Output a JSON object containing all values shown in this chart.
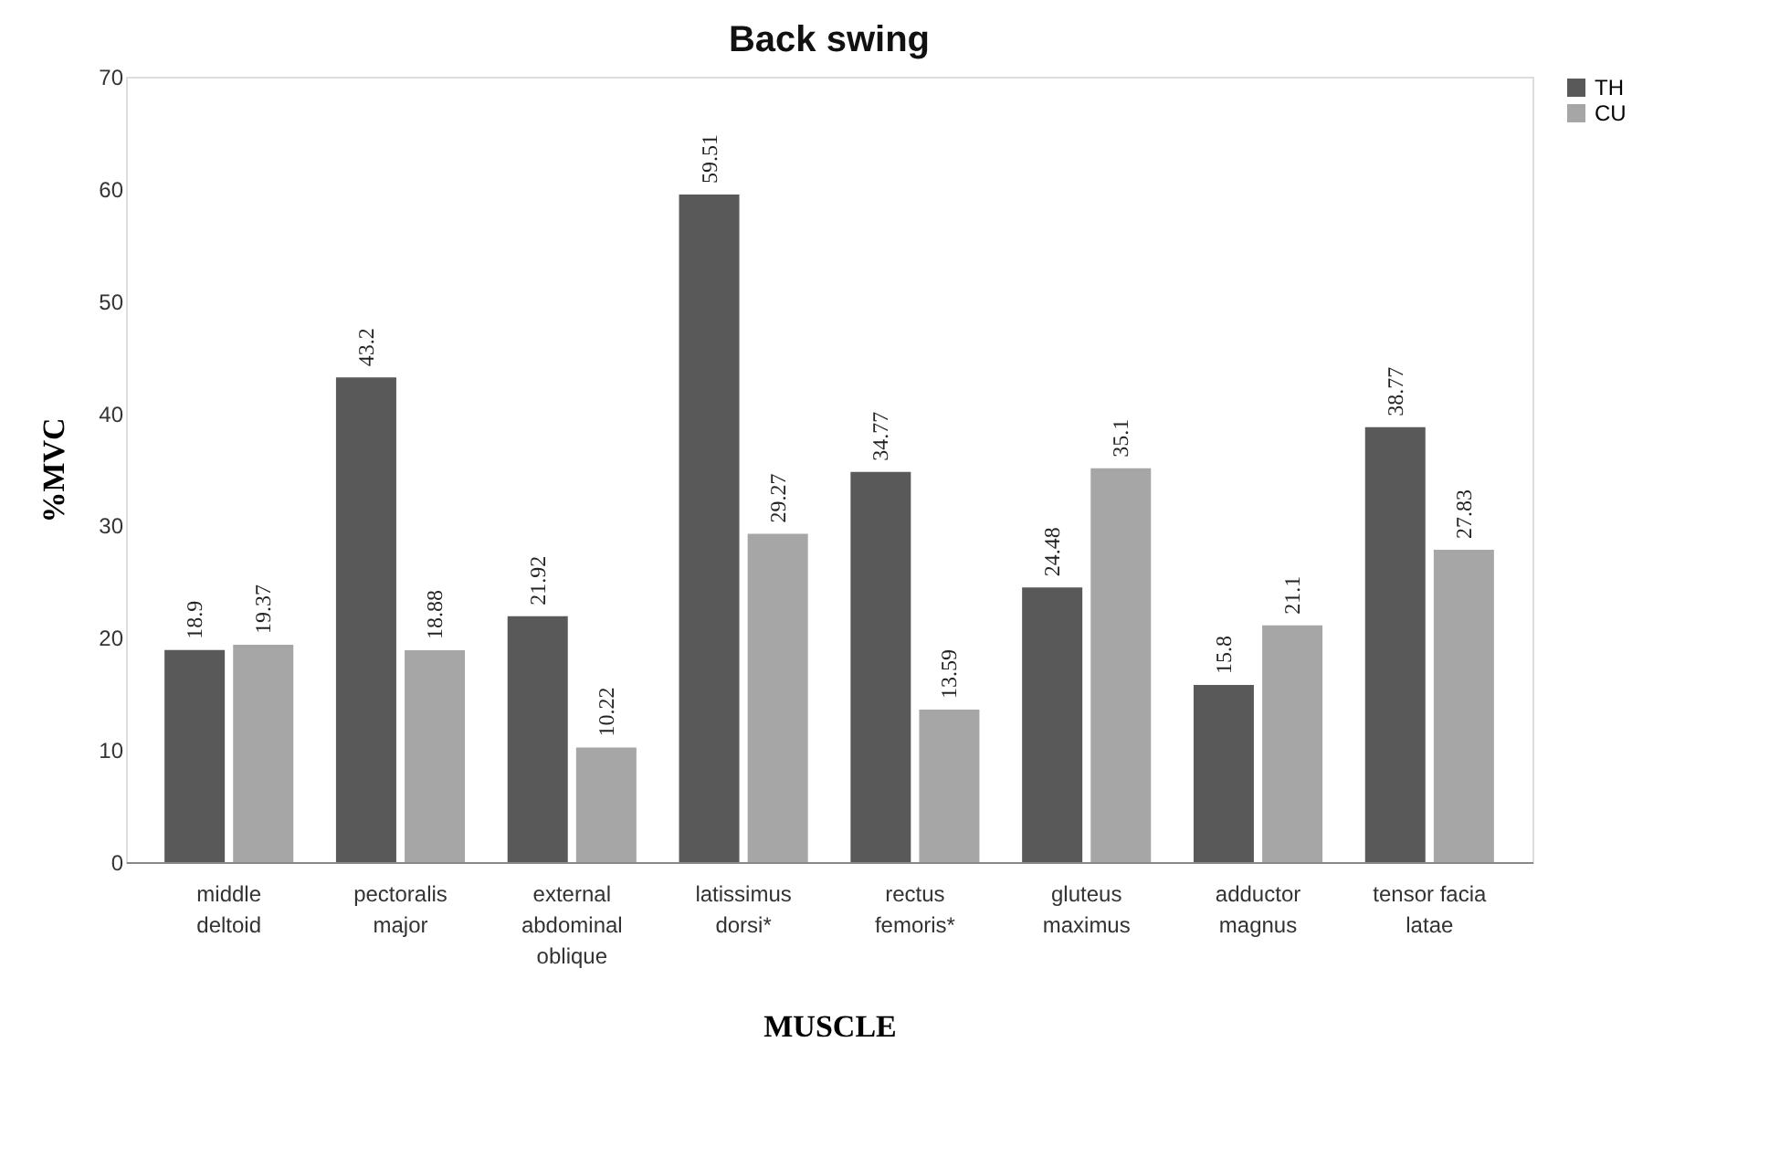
{
  "chart_data": {
    "type": "bar",
    "title": "Back swing",
    "xlabel": "MUSCLE",
    "ylabel": "%MVC",
    "categories": [
      "middle deltoid",
      "pectoralis major",
      "external abdominal oblique",
      "latissimus dorsi*",
      "rectus femoris*",
      "gluteus maximus",
      "adductor magnus",
      "tensor facia latae"
    ],
    "series": [
      {
        "name": "TH",
        "color": "#595959",
        "values": [
          18.9,
          43.2,
          21.92,
          59.51,
          34.77,
          24.48,
          15.8,
          38.77
        ]
      },
      {
        "name": "CU",
        "color": "#a6a6a6",
        "values": [
          19.37,
          18.88,
          10.22,
          29.27,
          13.59,
          35.1,
          21.1,
          27.83
        ]
      }
    ],
    "ylim": [
      0,
      70
    ],
    "yticks": [
      0,
      10,
      20,
      30,
      40,
      50,
      60,
      70
    ],
    "data_labels": true,
    "legend": "right",
    "grid": false
  }
}
